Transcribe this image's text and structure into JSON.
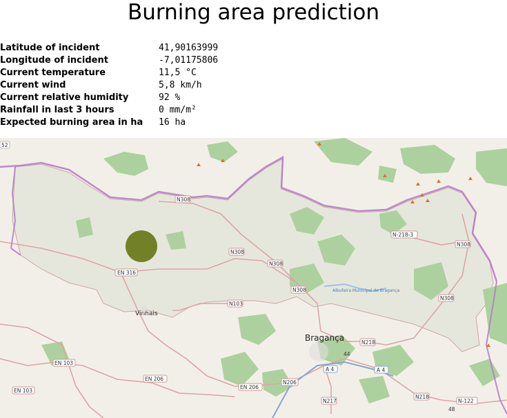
{
  "page": {
    "title": "Burning area prediction"
  },
  "info": {
    "rows": [
      {
        "label": "Latitude of incident",
        "value": "41,90163999"
      },
      {
        "label": "Longitude of incident",
        "value": "-7,01175806"
      },
      {
        "label": "Current temperature",
        "value": "11,5 °C"
      },
      {
        "label": "Current wind",
        "value": "5,8 km/h"
      },
      {
        "label": "Current relative humidity",
        "value": "92 %"
      },
      {
        "label": "Rainfall in last 3 hours",
        "value": "0 mm/m²"
      },
      {
        "label": "Expected burning area in ha",
        "value": "16 ha"
      }
    ]
  },
  "map": {
    "towns": {
      "vinhais": "Vinhais",
      "braganca": "Bragança"
    },
    "water": "Albufeira Municipal de Bragança",
    "roads": {
      "n308_1": "N308",
      "n308_2": "N308",
      "n308_3": "N308",
      "n308_4": "N308",
      "n308_5": "N308",
      "n308_6": "N308",
      "en316": "EN 316",
      "n103": "N103",
      "n218_3": "N-218-3",
      "n218_a": "N218",
      "n218_b": "N218",
      "a4_a": "A 4",
      "a4_b": "A 4",
      "en103": "EN 103",
      "en103b": "EN 103",
      "en206_a": "EN 206",
      "en206_b": "EN 206",
      "n206": "N206",
      "n217": "N217",
      "n122": "N-122",
      "e52": "52",
      "n48": "48",
      "e44": "44"
    },
    "colors": {
      "land": "#f2efe8",
      "district": "#e6e7dc",
      "forest": "#add19e",
      "border": "#b179c4",
      "road": "#d9a6a6",
      "incident": "#6b7a1e"
    }
  }
}
